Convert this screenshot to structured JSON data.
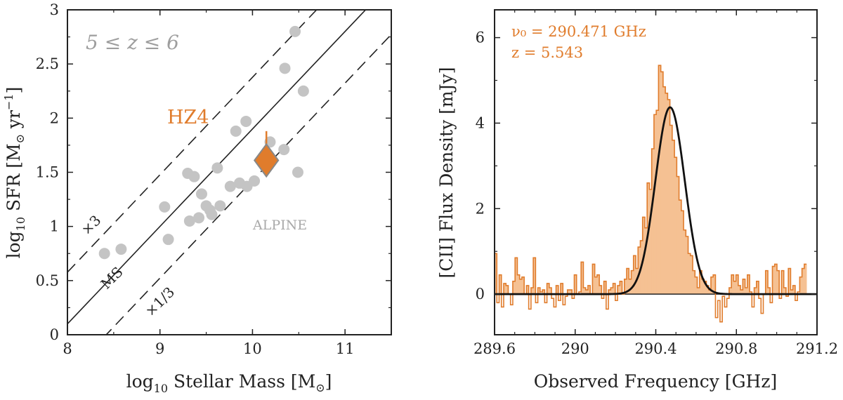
{
  "chart_data": [
    {
      "type": "scatter",
      "xlabel_pre": "log",
      "xlabel_sub": "10",
      "xlabel_main": " Stellar Mass [M",
      "xlabel_odot": "⊙",
      "xlabel_close": "]",
      "ylabel_pre": "log",
      "ylabel_sub": "10",
      "ylabel_main": " SFR [M",
      "ylabel_odot": "⊙",
      "ylabel_unit": " yr",
      "ylabel_sup": "−1",
      "ylabel_close": "]",
      "xlim": [
        8,
        11.5
      ],
      "ylim": [
        0,
        3
      ],
      "x_ticks": [
        8,
        9,
        10,
        11
      ],
      "y_ticks": [
        0,
        0.5,
        1,
        1.5,
        2,
        2.5,
        3
      ],
      "x_tick_labels": [
        "8",
        "9",
        "10",
        "11"
      ],
      "y_tick_labels": [
        "0",
        "0.5",
        "1",
        "1.5",
        "2",
        "2.5",
        "3"
      ],
      "redshift_label": "5 ≤ z ≤ 6",
      "ms_line": {
        "slope": 0.9,
        "intercept": -7.1,
        "label": "MS"
      },
      "upper_line": {
        "offset": 0.477,
        "label": "×3"
      },
      "lower_line": {
        "offset": -0.477,
        "label": "×1/3"
      },
      "alpine": {
        "label": "ALPINE",
        "color": "#c4c4c4",
        "points": [
          {
            "x": 8.4,
            "y": 0.75
          },
          {
            "x": 8.58,
            "y": 0.79
          },
          {
            "x": 9.05,
            "y": 1.18
          },
          {
            "x": 9.09,
            "y": 0.88
          },
          {
            "x": 9.3,
            "y": 1.49
          },
          {
            "x": 9.37,
            "y": 1.46
          },
          {
            "x": 9.32,
            "y": 1.05
          },
          {
            "x": 9.42,
            "y": 1.08
          },
          {
            "x": 9.45,
            "y": 1.3
          },
          {
            "x": 9.5,
            "y": 1.19
          },
          {
            "x": 9.54,
            "y": 1.15
          },
          {
            "x": 9.56,
            "y": 1.11
          },
          {
            "x": 9.62,
            "y": 1.54
          },
          {
            "x": 9.65,
            "y": 1.19
          },
          {
            "x": 9.76,
            "y": 1.37
          },
          {
            "x": 9.82,
            "y": 1.88
          },
          {
            "x": 9.86,
            "y": 1.4
          },
          {
            "x": 9.93,
            "y": 1.97
          },
          {
            "x": 9.94,
            "y": 1.37
          },
          {
            "x": 10.02,
            "y": 1.42
          },
          {
            "x": 10.14,
            "y": 1.58
          },
          {
            "x": 10.19,
            "y": 1.78
          },
          {
            "x": 10.34,
            "y": 1.71
          },
          {
            "x": 10.35,
            "y": 2.46
          },
          {
            "x": 10.46,
            "y": 2.8
          },
          {
            "x": 10.49,
            "y": 1.5
          },
          {
            "x": 10.55,
            "y": 2.25
          }
        ]
      },
      "hz4": {
        "label": "HZ4",
        "color": "#e07c2c",
        "x": 10.15,
        "y": 1.61,
        "yerr_low": 0.13,
        "yerr_high": 0.27
      }
    },
    {
      "type": "bar",
      "xlabel": "Observed Frequency [GHz]",
      "ylabel": "[CII] Flux Density [mJy]",
      "xlim": [
        289.6,
        291.2
      ],
      "ylim": [
        -0.95,
        6.65
      ],
      "x_ticks": [
        289.6,
        290,
        290.4,
        290.8,
        291.2
      ],
      "y_ticks": [
        0,
        2,
        4,
        6
      ],
      "x_tick_labels": [
        "289.6",
        "290",
        "290.4",
        "290.8",
        "291.2"
      ],
      "y_tick_labels": [
        "0",
        "2",
        "4",
        "6"
      ],
      "nu0_label": "ν₀ = 290.471 GHz",
      "z_label": "z = 5.543",
      "line_color": "#e07c2c",
      "fill_color": "#f5c193",
      "gaussian": {
        "amplitude": 4.37,
        "center": 290.471,
        "sigma": 0.073
      },
      "spectrum": {
        "start": 289.6,
        "step": 0.0113,
        "values": [
          0.95,
          -0.2,
          0.45,
          -0.3,
          0.25,
          0.2,
          0.0,
          -0.25,
          0.3,
          0.85,
          0.45,
          0.35,
          0.4,
          0.0,
          0.2,
          -0.35,
          0.15,
          0.85,
          -0.2,
          0.15,
          0.05,
          0.1,
          -0.2,
          0.25,
          0.15,
          -0.1,
          -0.3,
          0.2,
          -0.15,
          0.25,
          -0.25,
          -0.05,
          0.1,
          0.1,
          -0.1,
          0.45,
          0.0,
          0.05,
          0.75,
          0.15,
          0.1,
          0.2,
          0.0,
          0.7,
          0.4,
          0.45,
          0.2,
          -0.1,
          0.3,
          -0.35,
          0.1,
          0.15,
          0.25,
          -0.15,
          0.2,
          0.3,
          0.0,
          0.35,
          0.6,
          0.35,
          0.55,
          0.9,
          0.6,
          1.1,
          1.25,
          1.8,
          1.55,
          2.6,
          2.45,
          3.4,
          4.2,
          4.3,
          5.35,
          5.2,
          4.85,
          4.7,
          4.55,
          3.95,
          3.6,
          3.2,
          2.75,
          2.2,
          1.95,
          1.5,
          1.35,
          0.95,
          0.9,
          0.55,
          0.4,
          0.15,
          0.55,
          0.35,
          0.3,
          0.2,
          0.1,
          0.4,
          0.45,
          -0.55,
          -0.15,
          -0.65,
          -0.05,
          -0.3,
          -0.1,
          0.15,
          0.45,
          0.3,
          0.45,
          0.2,
          0.1,
          0.35,
          0.15,
          0.45,
          0.05,
          -0.3,
          0.15,
          0.3,
          -0.1,
          -0.45,
          0.0,
          0.55,
          0.15,
          -0.2,
          0.65,
          0.7,
          0.55,
          -0.1,
          0.55,
          0.15,
          -0.05,
          0.6,
          0.1,
          0.2,
          -0.15,
          0.05,
          0.4,
          0.6,
          0.7
        ]
      }
    }
  ]
}
